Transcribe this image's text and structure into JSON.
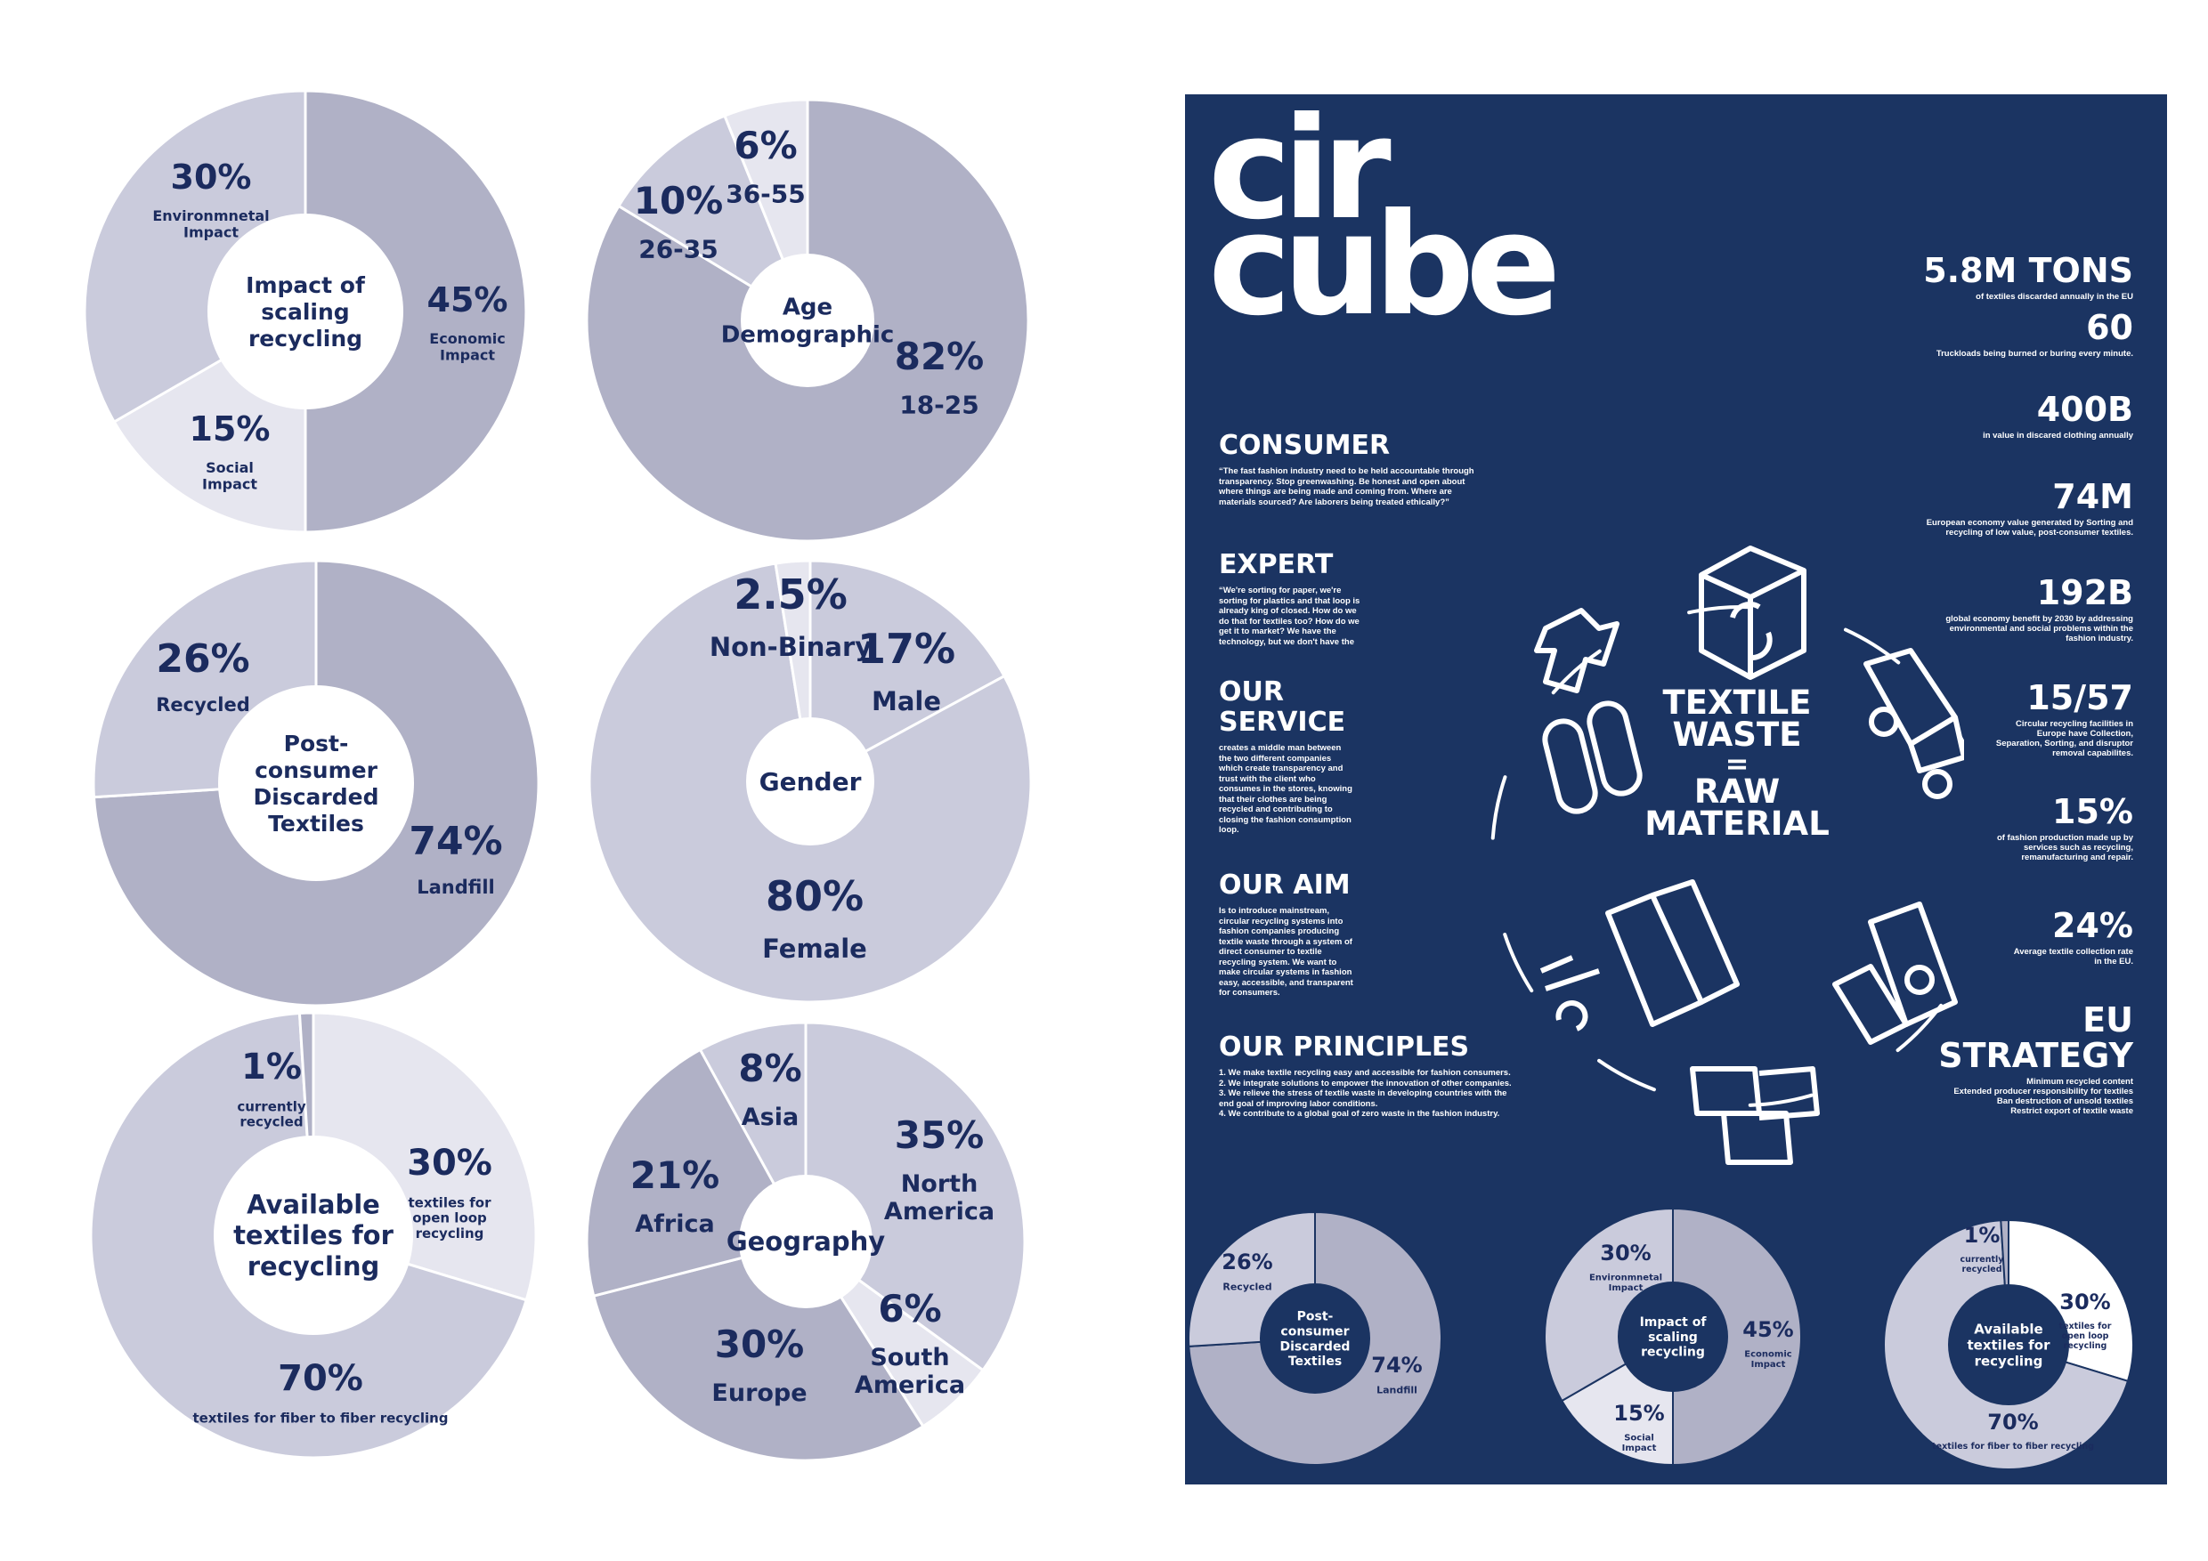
{
  "colors": {
    "navy": "#1b3462",
    "text": "#1b2b5e",
    "dark": "#b0b1c6",
    "mid": "#cacbdc",
    "light": "#e6e6ef",
    "white": "#ffffff"
  },
  "chart_data": [
    {
      "id": "impact",
      "type": "pie",
      "title": "Impact of scaling recycling",
      "slices": [
        {
          "value": 45,
          "pct": "45%",
          "label": "Economic Impact"
        },
        {
          "value": 15,
          "pct": "15%",
          "label": "Social Impact"
        },
        {
          "value": 30,
          "pct": "30%",
          "label": "Environmnetal Impact"
        }
      ]
    },
    {
      "id": "age",
      "type": "pie",
      "title": "Age Demographic",
      "slices": [
        {
          "value": 82,
          "pct": "82%",
          "label": "18-25"
        },
        {
          "value": 10,
          "pct": "10%",
          "label": "26-35"
        },
        {
          "value": 6,
          "pct": "6%",
          "label": "36-55"
        }
      ]
    },
    {
      "id": "post",
      "type": "pie",
      "title": "Post-consumer Discarded Textiles",
      "slices": [
        {
          "value": 74,
          "pct": "74%",
          "label": "Landfill"
        },
        {
          "value": 26,
          "pct": "26%",
          "label": "Recycled"
        }
      ]
    },
    {
      "id": "gender",
      "type": "pie",
      "title": "Gender",
      "slices": [
        {
          "value": 17,
          "pct": "17%",
          "label": "Male"
        },
        {
          "value": 80,
          "pct": "80%",
          "label": "Female"
        },
        {
          "value": 2.5,
          "pct": "2.5%",
          "label": "Non-Binary"
        }
      ]
    },
    {
      "id": "avail",
      "type": "pie",
      "title": "Available textiles for recycling",
      "slices": [
        {
          "value": 30,
          "pct": "30%",
          "label": "textiles for open loop recycling"
        },
        {
          "value": 70,
          "pct": "70%",
          "label": "textiles for fiber to fiber recycling"
        },
        {
          "value": 1,
          "pct": "1%",
          "label": "currently recycled"
        }
      ]
    },
    {
      "id": "geo",
      "type": "pie",
      "title": "Geography",
      "slices": [
        {
          "value": 35,
          "pct": "35%",
          "label": "North America"
        },
        {
          "value": 6,
          "pct": "6%",
          "label": "South America"
        },
        {
          "value": 30,
          "pct": "30%",
          "label": "Europe"
        },
        {
          "value": 21,
          "pct": "21%",
          "label": "Africa"
        },
        {
          "value": 8,
          "pct": "8%",
          "label": "Asia"
        }
      ]
    }
  ],
  "poster": {
    "logo_line1": "cir",
    "logo_line2": "cube",
    "center_line1": "TEXTILE",
    "center_line2": "WASTE",
    "center_eq": "=",
    "center_line3": "RAW",
    "center_line4": "MATERIAL",
    "sections": [
      {
        "heading": "CONSUMER",
        "body": "“The fast fashion industry need to be held accountable through\ntransparency. Stop greenwashing. Be honest and open about\nwhere things are being made and coming from. Where are\nmaterials sourced? Are laborers being treated ethically?”"
      },
      {
        "heading": "EXPERT",
        "body": "“We're sorting for paper, we're\nsorting for plastics and that loop is\nalready king of closed. How do we\ndo that for textiles too? How do we\nget it to market? We have the\ntechnology, but we don't have the"
      },
      {
        "heading": "OUR\nSERVICE",
        "body": "creates a middle man between\nthe two different companies\nwhich create transparency and\ntrust with the client who\nconsumes in the stores, knowing\nthat their clothes are being\nrecycled and contributing to\nclosing the fashion consumption\nloop."
      },
      {
        "heading": "OUR AIM",
        "body": "Is to introduce mainstream,\ncircular recycling systems into\nfashion companies producing\ntextile waste through a system of\ndirect consumer to textile\nrecycling system. We want to\nmake circular systems in fashion\neasy, accessible, and transparent\nfor consumers."
      },
      {
        "heading": "OUR PRINCIPLES",
        "body": "1. We make textile recycling easy and accessible for fashion consumers.\n2. We integrate solutions to empower the innovation of other companies.\n3. We relieve the stress of textile waste in developing countries with the\nend goal of improving labor conditions.\n4. We contribute to a global goal of zero waste in the fashion industry."
      }
    ],
    "stats": [
      {
        "value": "5.8M TONS",
        "desc": "of textiles discarded annually in the EU"
      },
      {
        "value": "60",
        "desc": "Truckloads being burned or buring every minute."
      },
      {
        "value": "400B",
        "desc": "in value in discared clothing annually"
      },
      {
        "value": "74M",
        "desc": "European economy value generated by Sorting and\nrecycling of low value, post-consumer textiles."
      },
      {
        "value": "192B",
        "desc": "global economy benefit by 2030 by addressing\nenvironmental and social problems within the\nfashion industry."
      },
      {
        "value": "15/57",
        "desc": "Circular recycling facilities in\nEurope have Collection,\nSeparation, Sorting, and disruptor\nremoval capabilites."
      },
      {
        "value": "15%",
        "desc": "of fashion production made up by\nservices such as recycling,\nremanufacturing and repair."
      },
      {
        "value": "24%",
        "desc": "Average textile collection rate\nin the EU."
      },
      {
        "value": "EU\nSTRATEGY",
        "desc": "Minimum recycled content\nExtended producer responsibility for textiles\nBan destruction of unsold textiles\nRestrict export of textile waste"
      }
    ],
    "mini_charts": [
      {
        "title": "Post-consumer Discarded Textiles",
        "slices": [
          {
            "value": 74,
            "pct": "74%",
            "label": "Landfill"
          },
          {
            "value": 26,
            "pct": "26%",
            "label": "Recycled"
          }
        ]
      },
      {
        "title": "Impact of scaling recycling",
        "slices": [
          {
            "value": 45,
            "pct": "45%",
            "label": "Economic Impact"
          },
          {
            "value": 15,
            "pct": "15%",
            "label": "Social Impact"
          },
          {
            "value": 30,
            "pct": "30%",
            "label": "Environmnetal Impact"
          }
        ]
      },
      {
        "title": "Available textiles for recycling",
        "slices": [
          {
            "value": 30,
            "pct": "30%",
            "label": "textiles for open loop recycling"
          },
          {
            "value": 70,
            "pct": "70%",
            "label": "textiles for fiber to fiber recycling"
          },
          {
            "value": 1,
            "pct": "1%",
            "label": "currently recycled"
          }
        ]
      }
    ],
    "icons": [
      "recycle-box-icon",
      "truck-icon",
      "recycle-machine-icon",
      "fabric-rolls-icon",
      "factory-icon",
      "shirt-icon"
    ]
  }
}
